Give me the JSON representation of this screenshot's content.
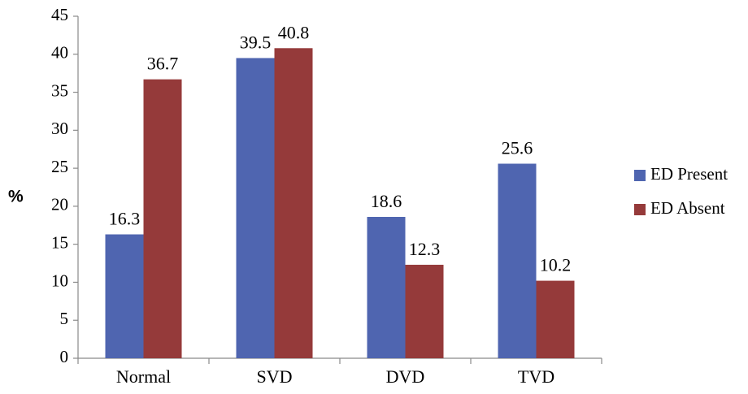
{
  "chart_data": {
    "type": "bar",
    "categories": [
      "Normal",
      "SVD",
      "DVD",
      "TVD"
    ],
    "series": [
      {
        "name": "ED Present",
        "values": [
          16.3,
          39.5,
          18.6,
          25.6
        ],
        "color": "#4F65B0"
      },
      {
        "name": "ED Absent",
        "values": [
          36.7,
          40.8,
          12.3,
          10.2
        ],
        "color": "#953A3A"
      }
    ],
    "data_labels": [
      [
        "16.3",
        "39.5",
        "18.6",
        "25.6"
      ],
      [
        "36.7",
        "40.8",
        "12.3",
        "10.2"
      ]
    ],
    "title": "",
    "xlabel": "",
    "ylabel": "%",
    "ylim": [
      0,
      45
    ],
    "yticks": [
      0,
      5,
      10,
      15,
      20,
      25,
      30,
      35,
      40,
      45
    ],
    "grid": false,
    "legend_position": "right"
  }
}
